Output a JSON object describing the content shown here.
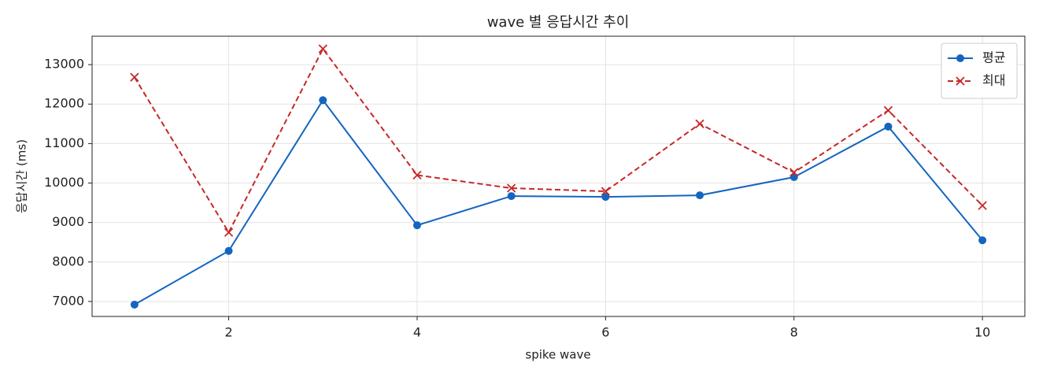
{
  "chart_data": {
    "type": "line",
    "title": "wave 별 응답시간 추이",
    "xlabel": "spike wave",
    "ylabel": "응답시간 (ms)",
    "x": [
      1,
      2,
      3,
      4,
      5,
      6,
      7,
      8,
      9,
      10
    ],
    "series": [
      {
        "name": "평균",
        "color": "#1565c0",
        "marker": "circle",
        "linestyle": "solid",
        "values": [
          6920,
          8280,
          12100,
          8930,
          9670,
          9650,
          9690,
          10150,
          11430,
          8550
        ]
      },
      {
        "name": "최대",
        "color": "#c62828",
        "marker": "x",
        "linestyle": "dashed",
        "values": [
          12680,
          8750,
          13400,
          10200,
          9870,
          9790,
          11500,
          10270,
          11840,
          9430
        ]
      }
    ],
    "xlim": [
      0.55,
      10.45
    ],
    "ylim": [
      6620,
      13720
    ],
    "xticks": [
      2,
      4,
      6,
      8,
      10
    ],
    "yticks": [
      7000,
      8000,
      9000,
      10000,
      11000,
      12000,
      13000
    ],
    "grid": true,
    "legend": "upper right"
  }
}
